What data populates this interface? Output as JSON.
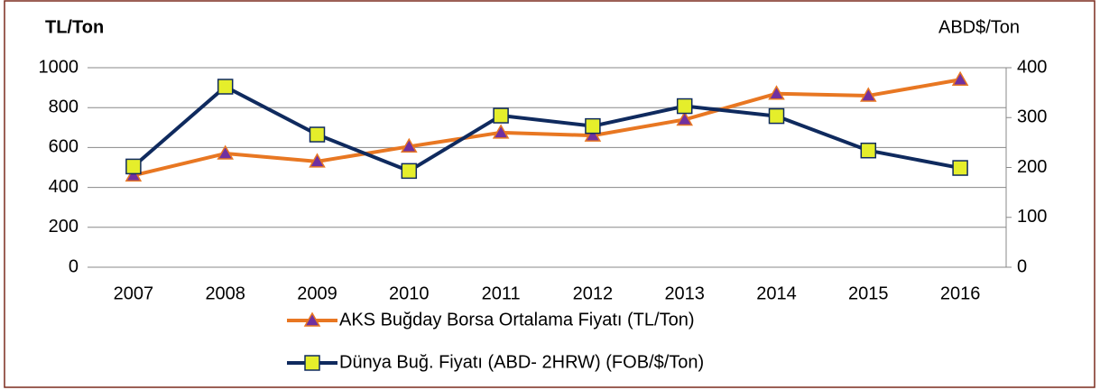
{
  "chart_data": {
    "type": "line",
    "y_label": "TL/Ton",
    "y2_label": "ABD$/Ton",
    "categories": [
      "2007",
      "2008",
      "2009",
      "2010",
      "2011",
      "2012",
      "2013",
      "2014",
      "2015",
      "2016"
    ],
    "series": [
      {
        "name": "AKS Buğday Borsa Ortalama Fiyatı (TL/Ton)",
        "color": "#e87722",
        "marker": "triangle",
        "marker_color": "#7030a0",
        "values": [
          460,
          570,
          530,
          605,
          675,
          660,
          740,
          870,
          860,
          940
        ]
      },
      {
        "name": "Dünya Buğ. Fiyatı (ABD- 2HRW) (FOB/$/Ton)",
        "color": "#0f2a5e",
        "marker": "square",
        "marker_color": "#e5ee2b",
        "axis": "y2",
        "values": [
          202,
          362,
          266,
          193,
          304,
          283,
          323,
          303,
          234,
          199
        ]
      }
    ],
    "ylim": [
      0,
      1000
    ],
    "yticks": [
      0,
      200,
      400,
      600,
      800,
      1000
    ],
    "y2lim": [
      0,
      400
    ],
    "y2ticks": [
      0,
      100,
      200,
      300,
      400
    ],
    "grid": true,
    "legend": "bottom"
  }
}
